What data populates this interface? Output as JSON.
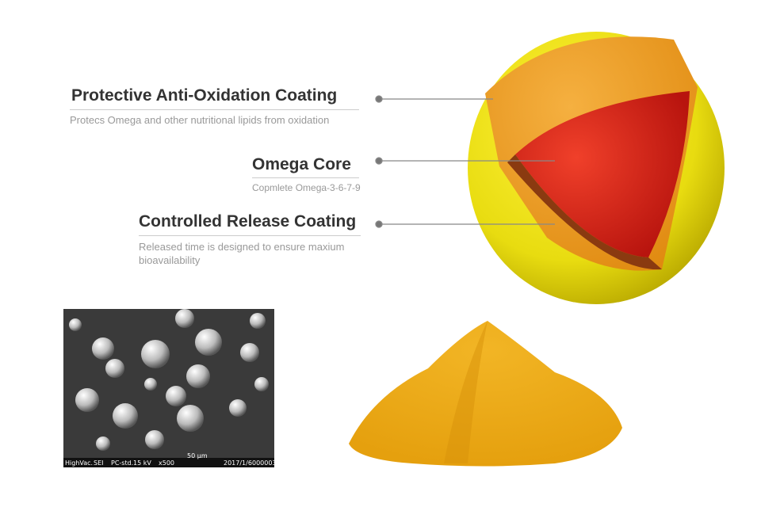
{
  "labels": [
    {
      "title": "Protective Anti-Oxidation Coating",
      "description": "Protecs Omega and other nutritional lipids from oxidation"
    },
    {
      "title": "Omega Core",
      "description": "Copmlete Omega-3-6-7-9"
    },
    {
      "title": "Controlled Release Coating",
      "description": "Released time is designed to ensure maxium bioavailability"
    }
  ],
  "micrograph": {
    "caption": [
      "HighVac.",
      "SEI",
      "PC-std.",
      "15 kV",
      "x500",
      "50 µm",
      "2017/1/6",
      "000003"
    ]
  }
}
